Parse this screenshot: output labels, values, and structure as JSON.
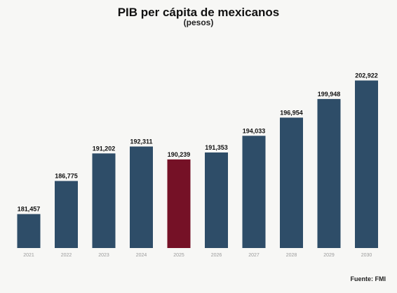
{
  "chart_data": {
    "type": "bar",
    "title": "PIB per cápita de mexicanos",
    "subtitle": "(pesos)",
    "xlabel": "",
    "ylabel": "",
    "categories": [
      "2021",
      "2022",
      "2023",
      "2024",
      "2025",
      "2026",
      "2027",
      "2028",
      "2029",
      "2030"
    ],
    "values": [
      181457,
      186775,
      191202,
      192311,
      190239,
      191353,
      194033,
      196954,
      199948,
      202922
    ],
    "value_labels": [
      "181,457",
      "186,775",
      "191,202",
      "192,311",
      "190,239",
      "191,353",
      "194,033",
      "196,954",
      "199,948",
      "202,922"
    ],
    "ylim": [
      176000,
      204000
    ],
    "highlight_category": "2025",
    "grid": false,
    "source": "Fuente: FMI"
  },
  "colors": {
    "bar": "#2e4d68",
    "highlight": "#751126",
    "background": "#f7f7f5"
  }
}
